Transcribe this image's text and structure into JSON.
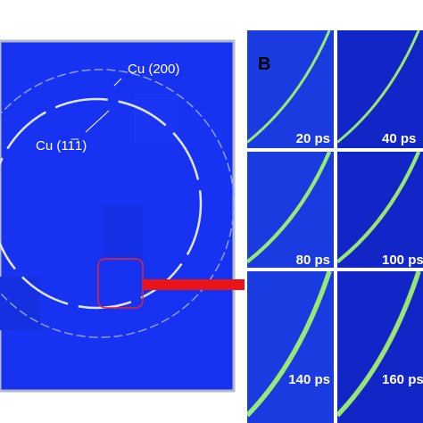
{
  "left_panel": {
    "ring_labels": [
      "Cu (200)",
      "Cu (11̅1)"
    ]
  },
  "right_panel": {
    "panel_label": "B",
    "tiles": [
      "20 ps",
      "40 ps",
      "80 ps",
      "100 ps",
      "140 ps",
      "160 ps"
    ]
  }
}
